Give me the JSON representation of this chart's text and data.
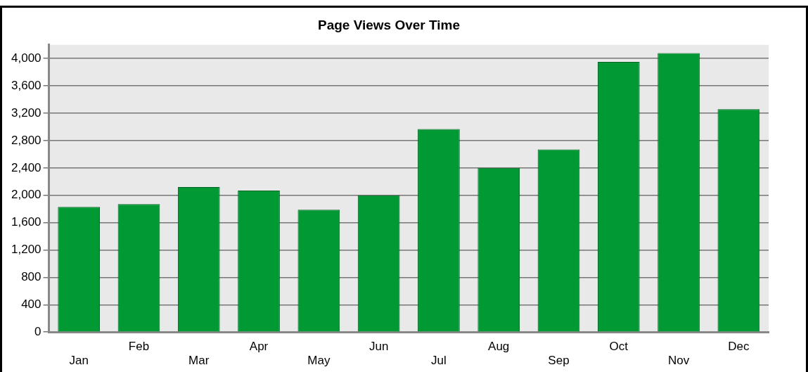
{
  "chart_data": {
    "type": "bar",
    "title": "Page Views Over Time",
    "categories": [
      "Jan",
      "Feb",
      "Mar",
      "Apr",
      "May",
      "Jun",
      "Jul",
      "Aug",
      "Sep",
      "Oct",
      "Nov",
      "Dec"
    ],
    "values": [
      1830,
      1870,
      2120,
      2070,
      1790,
      2000,
      2970,
      2400,
      2670,
      3950,
      4080,
      3260
    ],
    "color": "#009933",
    "ylim": [
      0,
      4200
    ],
    "yticks": [
      {
        "value": 0,
        "label": "0"
      },
      {
        "value": 400,
        "label": "400"
      },
      {
        "value": 800,
        "label": "800"
      },
      {
        "value": 1200,
        "label": "1,200"
      },
      {
        "value": 1600,
        "label": "1,600"
      },
      {
        "value": 2000,
        "label": "2,000"
      },
      {
        "value": 2400,
        "label": "2,400"
      },
      {
        "value": 2800,
        "label": "2,800"
      },
      {
        "value": 3200,
        "label": "3,200"
      },
      {
        "value": 3600,
        "label": "3,600"
      },
      {
        "value": 4000,
        "label": "4,000"
      }
    ],
    "grid": "y",
    "legend": false
  }
}
